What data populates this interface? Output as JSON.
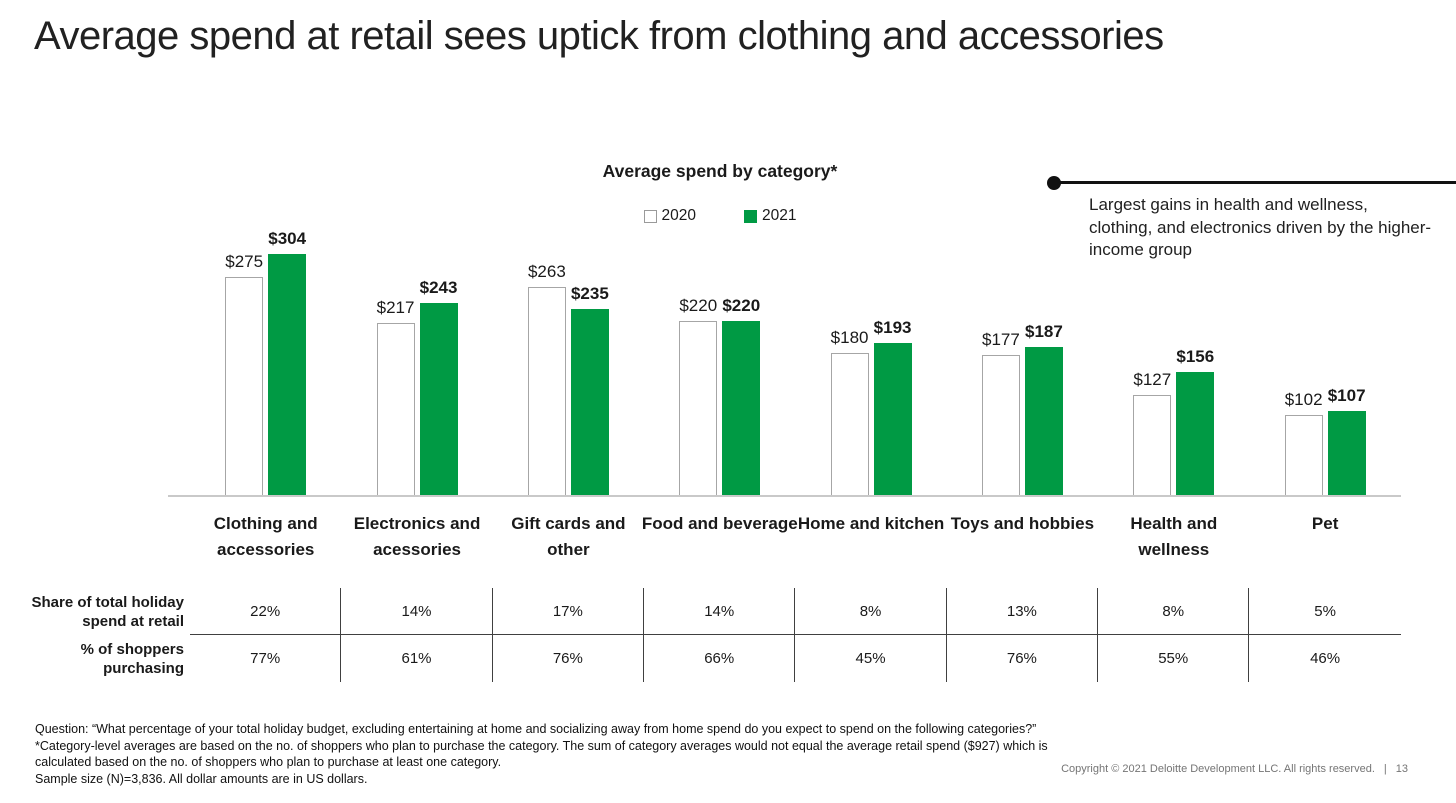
{
  "page": {
    "title": "Average spend at retail sees uptick from clothing and accessories",
    "copyright": "Copyright © 2021 Deloitte Development LLC. All rights reserved.",
    "separator": "|",
    "page_number": "13"
  },
  "chart_data": {
    "type": "bar",
    "title": "Average spend by category*",
    "legend": [
      "2020",
      "2021"
    ],
    "legend_position": "top-center",
    "grid": false,
    "value_prefix": "$",
    "ylim": [
      0,
      310
    ],
    "categories": [
      "Clothing and accessories",
      "Electronics and acessories",
      "Gift cards and other",
      "Food and beverage",
      "Home and kitchen",
      "Toys and hobbies",
      "Health and wellness",
      "Pet"
    ],
    "series": [
      {
        "name": "2020",
        "fill": "#ffffff",
        "border": "#a6a6a6",
        "bold_labels": false,
        "values": [
          275,
          217,
          263,
          220,
          180,
          177,
          127,
          102
        ]
      },
      {
        "name": "2021",
        "fill": "#009A44",
        "border": "#009A44",
        "bold_labels": true,
        "values": [
          304,
          243,
          235,
          220,
          193,
          187,
          156,
          107
        ]
      }
    ]
  },
  "callout": {
    "text": "Largest gains in health and wellness, clothing, and electronics driven by the higher-income group"
  },
  "table": {
    "row_headers": [
      "Share of total holiday spend at retail",
      "% of shoppers purchasing"
    ],
    "rows": [
      [
        "22%",
        "14%",
        "17%",
        "14%",
        "8%",
        "13%",
        "8%",
        "5%"
      ],
      [
        "77%",
        "61%",
        "76%",
        "66%",
        "45%",
        "76%",
        "55%",
        "46%"
      ]
    ]
  },
  "footnotes": [
    "Question: “What percentage of your total holiday budget, excluding entertaining at home and socializing away from home spend do you expect to spend on the following categories?”",
    "*Category-level averages are based on the no. of shoppers who plan to purchase the category. The sum of category averages would not equal the average retail spend ($927) which is",
    "calculated based on the no. of shoppers who plan to purchase at least one category.",
    "Sample size (N)=3,836. All dollar amounts are in US dollars."
  ],
  "colors": {
    "green_2021": "#009A44",
    "bar_2020_border": "#a6a6a6",
    "axis_line": "#c9c9c9",
    "table_line": "#404040",
    "text": "#212121",
    "muted_text": "#757575",
    "callout_line": "#111111"
  }
}
